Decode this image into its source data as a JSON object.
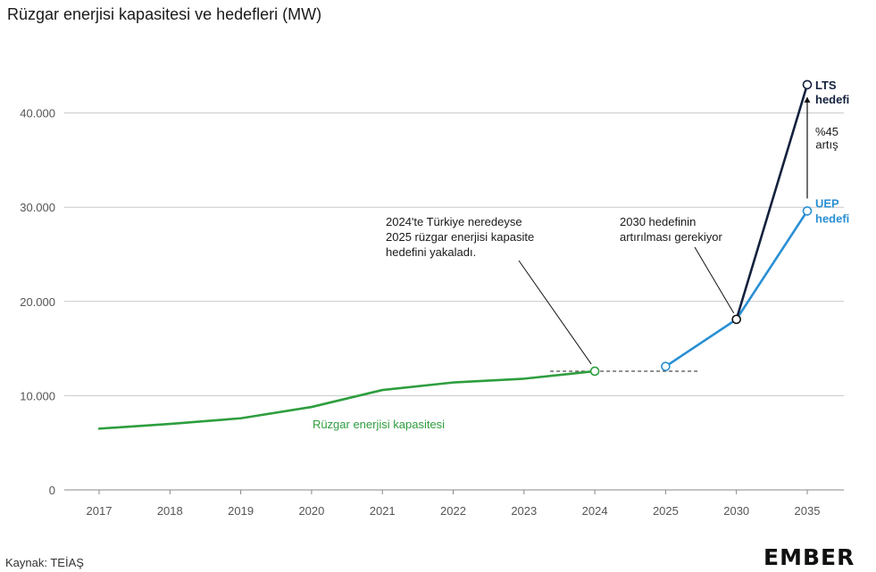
{
  "title": "Rüzgar enerjisi kapasitesi ve hedefleri (MW)",
  "source": "Kaynak: TEİAŞ",
  "logo": "EMBER",
  "colors": {
    "capacity": "#2e9e3f",
    "uep": "#2a8fd4",
    "lts": "#14213d",
    "grid": "#c8c8c8"
  },
  "chart_data": {
    "type": "line",
    "categories": [
      "2017",
      "2018",
      "2019",
      "2020",
      "2021",
      "2022",
      "2023",
      "2024",
      "2025",
      "2030",
      "2035"
    ],
    "ylim": [
      0,
      45000
    ],
    "yticks": [
      0,
      10000,
      20000,
      30000,
      40000
    ],
    "ytick_labels": [
      "0",
      "10.000",
      "20.000",
      "30.000",
      "40.000"
    ],
    "grid": true,
    "series": [
      {
        "name": "Rüzgar enerjisi kapasitesi",
        "color": "#2e9e3f",
        "points": [
          {
            "x": "2017",
            "y": 6500
          },
          {
            "x": "2018",
            "y": 7000
          },
          {
            "x": "2019",
            "y": 7600
          },
          {
            "x": "2020",
            "y": 8800
          },
          {
            "x": "2021",
            "y": 10600
          },
          {
            "x": "2022",
            "y": 11400
          },
          {
            "x": "2023",
            "y": 11800
          },
          {
            "x": "2024",
            "y": 12600
          }
        ]
      },
      {
        "name": "UEP hedefi",
        "color": "#2a8fd4",
        "points": [
          {
            "x": "2025",
            "y": 13100
          },
          {
            "x": "2030",
            "y": 18100
          },
          {
            "x": "2035",
            "y": 29600
          }
        ]
      },
      {
        "name": "LTS hedefi",
        "color": "#14213d",
        "points": [
          {
            "x": "2030",
            "y": 18100
          },
          {
            "x": "2035",
            "y": 43000
          }
        ]
      }
    ],
    "reference_line": {
      "from": "2024",
      "to": "2025",
      "y": 12600
    },
    "labels": {
      "capacity": "Rüzgar enerjisi kapasitesi",
      "lts_line1": "LTS",
      "lts_line2": "hedefi",
      "uep_line1": "UEP",
      "uep_line2": "hedefi",
      "increase_line1": "%45",
      "increase_line2": "artış"
    },
    "annotations": [
      {
        "lines": [
          "2024'te Türkiye neredeyse",
          "2025 rüzgar enerjisi kapasite",
          "hedefini yakaladı."
        ],
        "target": {
          "x": "2024",
          "y": 12600
        }
      },
      {
        "lines": [
          "2030 hedefinin",
          "artırılması gerekiyor"
        ],
        "target": {
          "x": "2030",
          "y": 18100
        }
      }
    ]
  }
}
